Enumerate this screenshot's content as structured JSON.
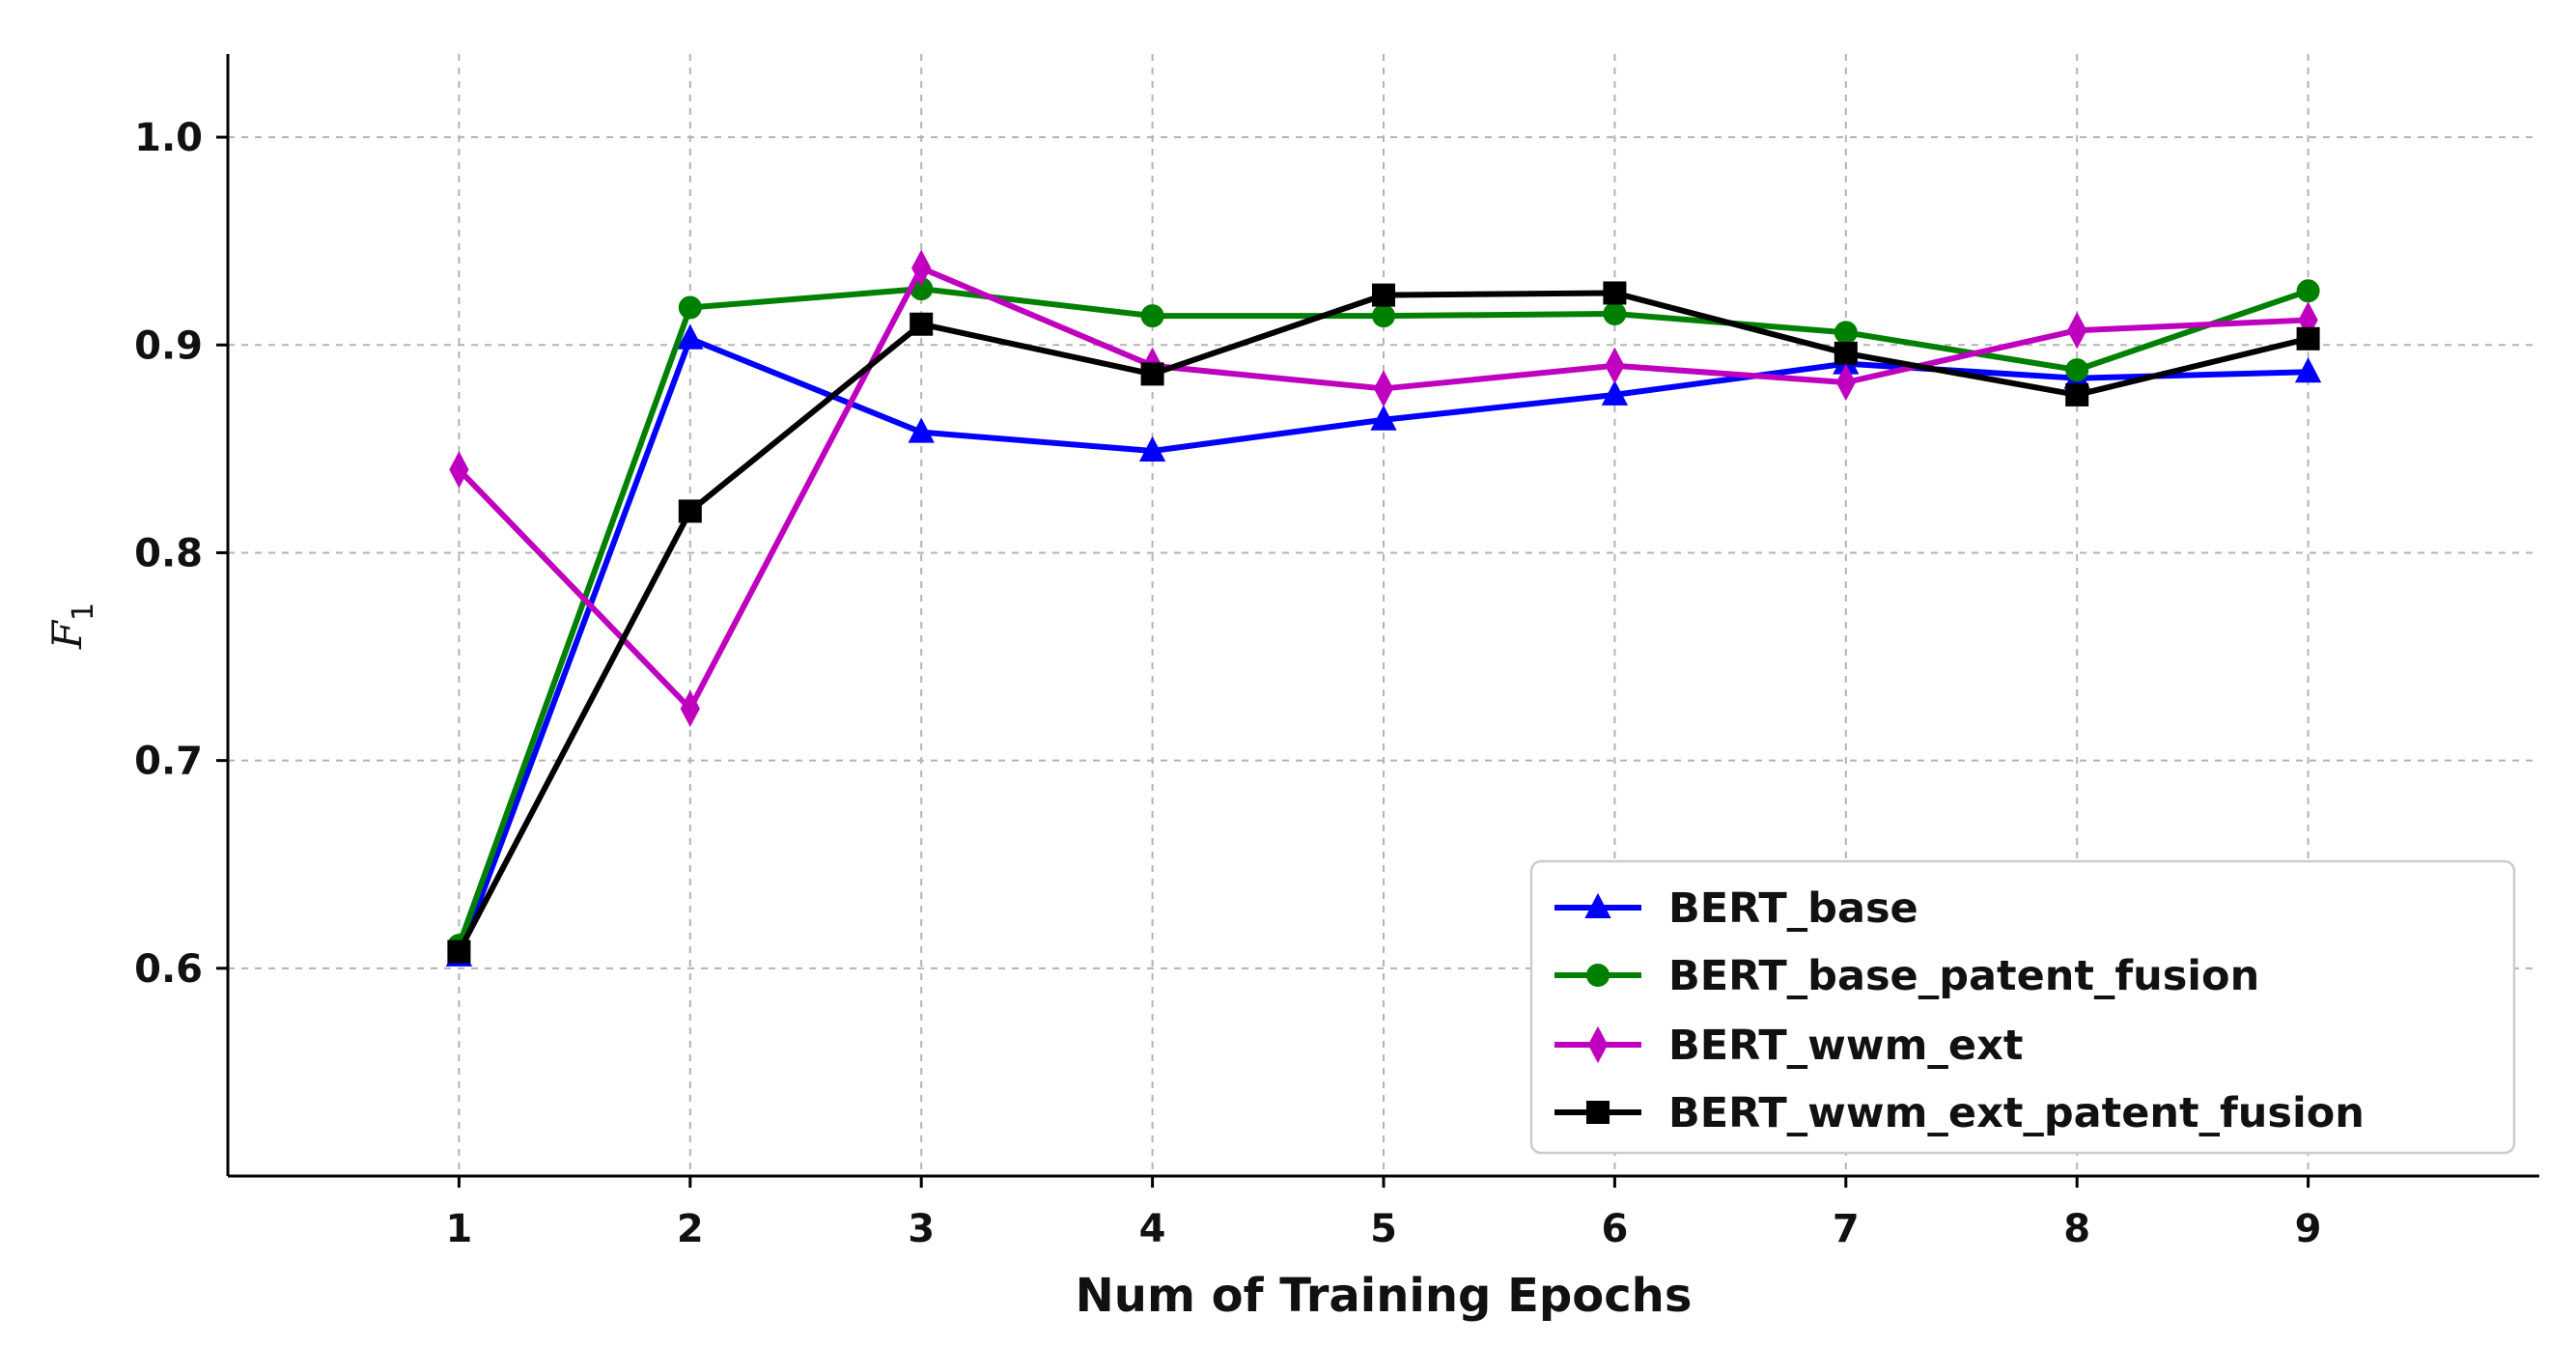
{
  "chart_data": {
    "type": "line",
    "title": "",
    "xlabel": "Num of Training Epochs",
    "ylabel": "F",
    "ylabel_subscript": "1",
    "x": [
      1,
      2,
      3,
      4,
      5,
      6,
      7,
      8,
      9
    ],
    "x_ticks": [
      "1",
      "2",
      "3",
      "4",
      "5",
      "6",
      "7",
      "8",
      "9"
    ],
    "y_ticks": [
      "0.6",
      "0.7",
      "0.8",
      "0.9",
      "1.0"
    ],
    "xlim": [
      0,
      10
    ],
    "ylim": [
      0.5,
      1.04
    ],
    "grid": true,
    "legend_position": "bottom-right",
    "series": [
      {
        "name": "BERT_base",
        "color": "#0000ff",
        "marker": "triangle",
        "values": [
          0.606,
          0.903,
          0.858,
          0.849,
          0.864,
          0.876,
          0.891,
          0.884,
          0.887
        ]
      },
      {
        "name": "BERT_base_patent_fusion",
        "color": "#008000",
        "marker": "circle",
        "values": [
          0.611,
          0.918,
          0.927,
          0.914,
          0.914,
          0.915,
          0.906,
          0.888,
          0.926
        ]
      },
      {
        "name": "BERT_wwm_ext",
        "color": "#bf00bf",
        "marker": "thin-diamond",
        "values": [
          0.84,
          0.725,
          0.937,
          0.89,
          0.879,
          0.89,
          0.882,
          0.907,
          0.912
        ]
      },
      {
        "name": "BERT_wwm_ext_patent_fusion",
        "color": "#000000",
        "marker": "square",
        "values": [
          0.608,
          0.82,
          0.91,
          0.886,
          0.924,
          0.925,
          0.896,
          0.876,
          0.903
        ]
      }
    ]
  }
}
